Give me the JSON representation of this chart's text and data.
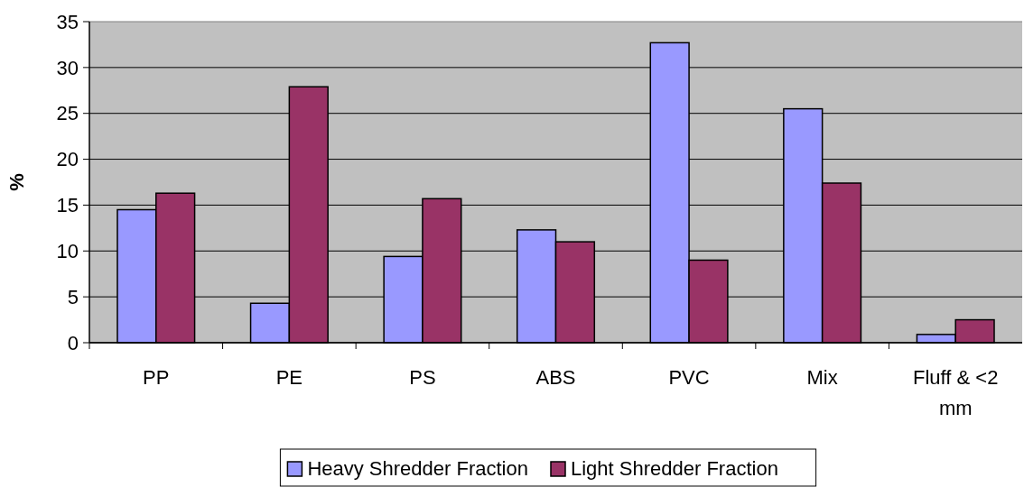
{
  "chart_data": {
    "type": "bar",
    "ylabel": "%",
    "categories": [
      "PP",
      "PE",
      "PS",
      "ABS",
      "PVC",
      "Mix",
      "Fluff & <2 mm"
    ],
    "series": [
      {
        "name": "Heavy Shredder Fraction",
        "color": "#9999ff",
        "values": [
          14.5,
          4.3,
          9.4,
          12.3,
          32.7,
          25.5,
          0.9
        ]
      },
      {
        "name": "Light Shredder Fraction",
        "color": "#993366",
        "values": [
          16.3,
          27.9,
          15.7,
          11.0,
          9.0,
          17.4,
          2.5
        ]
      }
    ],
    "ylim": [
      0,
      35
    ],
    "yticks": [
      0,
      5,
      10,
      15,
      20,
      25,
      30,
      35
    ],
    "grid": "y",
    "legend": "bottom"
  }
}
